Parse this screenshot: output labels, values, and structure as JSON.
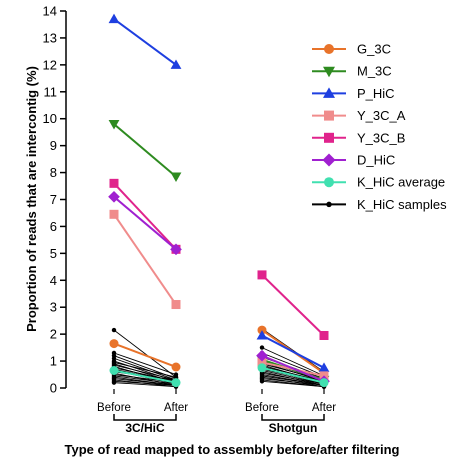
{
  "chart_data": {
    "type": "line",
    "xlabel": "Type of read mapped to assembly before/after filtering",
    "ylabel": "Proportion of reads that are intercontig (%)",
    "ylim": [
      0,
      14
    ],
    "y_ticks": [
      0,
      1,
      2,
      3,
      4,
      5,
      6,
      7,
      8,
      9,
      10,
      11,
      12,
      13,
      14
    ],
    "categories": [
      "Before",
      "After",
      "Before",
      "After"
    ],
    "groups": [
      {
        "label": "3C/HiC",
        "categories": [
          "Before",
          "After"
        ]
      },
      {
        "label": "Shotgun",
        "categories": [
          "Before",
          "After"
        ]
      }
    ],
    "legend_position": "right",
    "series": [
      {
        "name": "G_3C",
        "color": "#E8732A",
        "marker": "circle",
        "hic": [
          1.65,
          0.78
        ],
        "shotgun": [
          2.15,
          0.55
        ]
      },
      {
        "name": "M_3C",
        "color": "#2E8B20",
        "marker": "triangle-down",
        "hic": [
          9.8,
          7.85
        ],
        "shotgun": [
          1.05,
          0.3
        ]
      },
      {
        "name": "P_HiC",
        "color": "#1E3FE0",
        "marker": "triangle-up",
        "hic": [
          13.7,
          12.0
        ],
        "shotgun": [
          1.95,
          0.75
        ]
      },
      {
        "name": "Y_3C_A",
        "color": "#F08C8C",
        "marker": "square",
        "hic": [
          6.45,
          3.1
        ],
        "shotgun": [
          0.95,
          0.45
        ]
      },
      {
        "name": "Y_3C_B",
        "color": "#E0238C",
        "marker": "square",
        "hic": [
          7.6,
          5.15
        ],
        "shotgun": [
          4.2,
          1.95
        ]
      },
      {
        "name": "D_HiC",
        "color": "#A020D0",
        "marker": "diamond",
        "hic": [
          7.1,
          5.15
        ],
        "shotgun": [
          1.2,
          0.25
        ]
      },
      {
        "name": "K_HiC average",
        "color": "#40E0B0",
        "marker": "circle",
        "hic": [
          0.65,
          0.2
        ],
        "shotgun": [
          0.75,
          0.2
        ]
      },
      {
        "name": "K_HiC samples",
        "color": "#000000",
        "marker": "small-circle"
      }
    ],
    "k_hic_samples": {
      "hic": [
        [
          2.15,
          0.4
        ],
        [
          1.3,
          0.5
        ],
        [
          1.2,
          0.35
        ],
        [
          1.1,
          0.3
        ],
        [
          1.0,
          0.25
        ],
        [
          0.95,
          0.4
        ],
        [
          0.9,
          0.2
        ],
        [
          0.85,
          0.3
        ],
        [
          0.8,
          0.15
        ],
        [
          0.75,
          0.25
        ],
        [
          0.7,
          0.2
        ],
        [
          0.65,
          0.15
        ],
        [
          0.6,
          0.3
        ],
        [
          0.55,
          0.1
        ],
        [
          0.5,
          0.2
        ],
        [
          0.45,
          0.15
        ],
        [
          0.4,
          0.1
        ],
        [
          0.35,
          0.1
        ],
        [
          0.3,
          0.05
        ],
        [
          0.25,
          0.1
        ],
        [
          0.2,
          0.05
        ]
      ],
      "shotgun": [
        [
          2.2,
          0.6
        ],
        [
          1.5,
          0.45
        ],
        [
          1.3,
          0.4
        ],
        [
          1.15,
          0.35
        ],
        [
          1.0,
          0.3
        ],
        [
          0.95,
          0.25
        ],
        [
          0.9,
          0.3
        ],
        [
          0.85,
          0.2
        ],
        [
          0.8,
          0.25
        ],
        [
          0.75,
          0.15
        ],
        [
          0.7,
          0.2
        ],
        [
          0.65,
          0.15
        ],
        [
          0.6,
          0.1
        ],
        [
          0.55,
          0.15
        ],
        [
          0.5,
          0.1
        ],
        [
          0.45,
          0.1
        ],
        [
          0.4,
          0.05
        ],
        [
          0.35,
          0.1
        ],
        [
          0.3,
          0.05
        ],
        [
          0.25,
          0.05
        ]
      ]
    }
  }
}
